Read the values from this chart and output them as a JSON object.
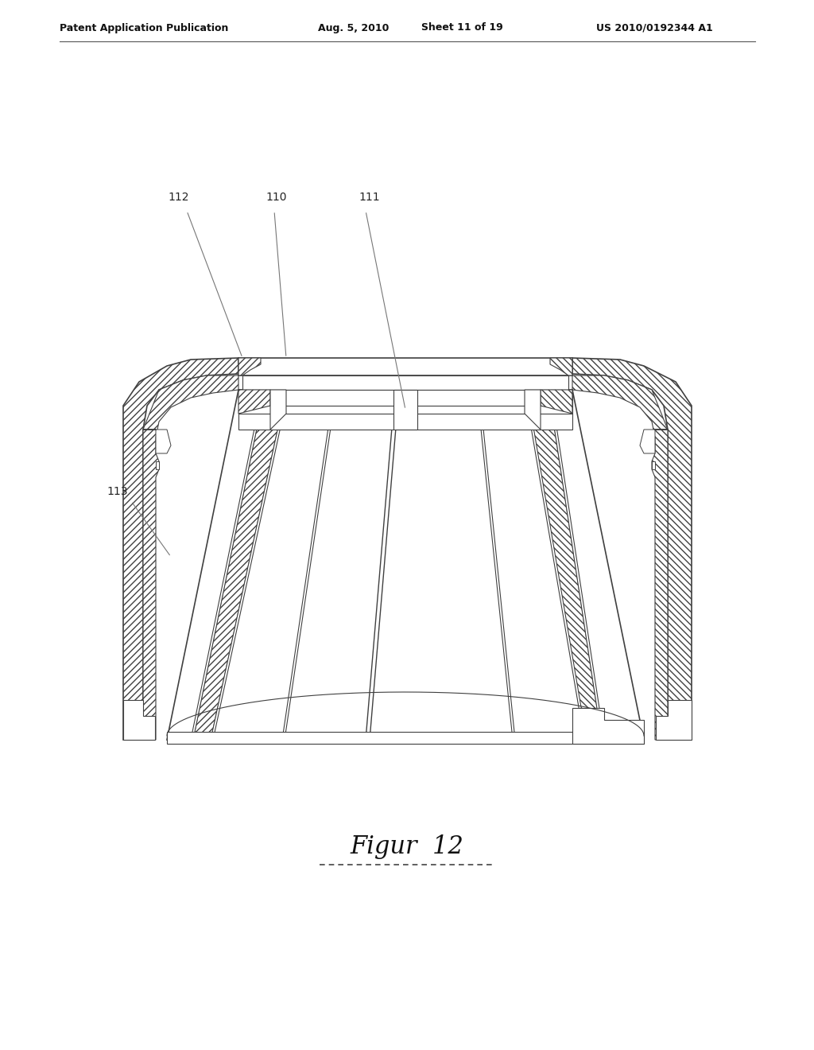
{
  "background_color": "#ffffff",
  "header": {
    "left": "Patent Application Publication",
    "center_date": "Aug. 5, 2010",
    "center_sheet": "Sheet 11 of 19",
    "right": "US 2010/0192344 A1"
  },
  "caption": "Figur  12",
  "line_color": "#404040",
  "hatch_color": "#606060"
}
